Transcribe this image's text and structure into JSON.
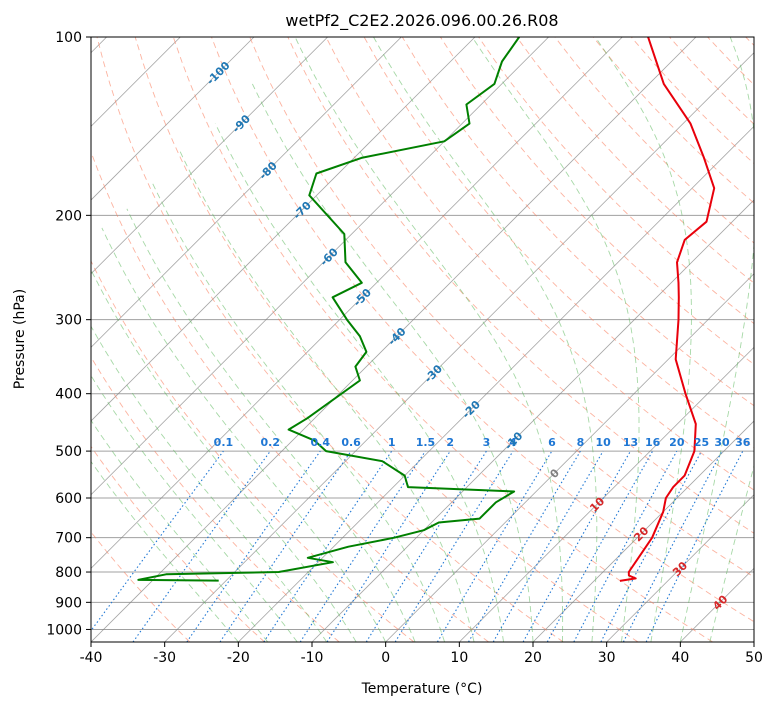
{
  "chart_data": {
    "type": "skew-t",
    "title": "wetPf2_C2E2.2026.096.00.26.R08",
    "xlabel": "Temperature (°C)",
    "ylabel": "Pressure (hPa)",
    "xlim": [
      -40,
      50
    ],
    "ylim": [
      1050,
      100
    ],
    "x_ticks": [
      -40,
      -30,
      -20,
      -10,
      0,
      10,
      20,
      30,
      40,
      50
    ],
    "y_ticks": [
      100,
      200,
      300,
      400,
      500,
      600,
      700,
      800,
      900,
      1000
    ],
    "grid": true,
    "series": [
      {
        "name": "temperature",
        "color": "#e8000b",
        "points": [
          [
            23.5,
            828
          ],
          [
            25.3,
            820
          ],
          [
            24.0,
            811
          ],
          [
            23.5,
            800
          ],
          [
            22.0,
            700
          ],
          [
            20.0,
            633
          ],
          [
            18.5,
            600
          ],
          [
            18.0,
            575
          ],
          [
            18.0,
            550
          ],
          [
            16.0,
            500
          ],
          [
            12.5,
            450
          ],
          [
            7.0,
            400
          ],
          [
            1.0,
            350
          ],
          [
            -4.0,
            300
          ],
          [
            -7.0,
            275
          ],
          [
            -9.0,
            260
          ],
          [
            -12.0,
            240
          ],
          [
            -14.0,
            220
          ],
          [
            -13.5,
            205
          ],
          [
            -17.0,
            180
          ],
          [
            -22.5,
            160
          ],
          [
            -29.0,
            140
          ],
          [
            -38.0,
            120
          ],
          [
            -46.5,
            100
          ]
        ]
      },
      {
        "name": "dewpoint",
        "color": "#008000",
        "points": [
          [
            -31.0,
            827
          ],
          [
            -42.0,
            825
          ],
          [
            -39.0,
            807
          ],
          [
            -24.0,
            800
          ],
          [
            -18.0,
            770
          ],
          [
            -22.0,
            757
          ],
          [
            -18.0,
            725
          ],
          [
            -13.0,
            700
          ],
          [
            -10.0,
            680
          ],
          [
            -9.0,
            660
          ],
          [
            -4.0,
            650
          ],
          [
            -4.0,
            610
          ],
          [
            -3.0,
            585
          ],
          [
            -18.0,
            575
          ],
          [
            -20.0,
            550
          ],
          [
            -25.0,
            520
          ],
          [
            -34.0,
            500
          ],
          [
            -37.0,
            480
          ],
          [
            -42.0,
            460
          ],
          [
            -41.0,
            440
          ],
          [
            -39.0,
            380
          ],
          [
            -41.5,
            360
          ],
          [
            -42.0,
            340
          ],
          [
            -45.0,
            320
          ],
          [
            -49.0,
            300
          ],
          [
            -54.0,
            275
          ],
          [
            -52.0,
            260
          ],
          [
            -57.0,
            240
          ],
          [
            -61.0,
            215
          ],
          [
            -71.0,
            185
          ],
          [
            -73.0,
            170
          ],
          [
            -69.0,
            160
          ],
          [
            -60.0,
            150
          ],
          [
            -59.0,
            140
          ],
          [
            -62.0,
            130
          ],
          [
            -61.0,
            120
          ],
          [
            -63.0,
            110
          ],
          [
            -64.0,
            100
          ]
        ]
      }
    ],
    "isotherm_labels": [
      "-100",
      "-90",
      "-80",
      "-70",
      "-60",
      "-50",
      "-40",
      "-30",
      "-20",
      "-10",
      "0",
      "10",
      "20",
      "30",
      "40"
    ],
    "mixing_ratio_labels": [
      "0.1",
      "0.2",
      "0.4",
      "0.6",
      "1",
      "1.5",
      "2",
      "3",
      "4",
      "6",
      "8",
      "10",
      "13",
      "16",
      "20",
      "25",
      "30",
      "36"
    ]
  },
  "colors": {
    "dry_adiabat": "#fa8060",
    "moist_adiabat": "#5cb85c",
    "mixing_ratio": "#1f77d4",
    "isotherm": "#808080",
    "isobar": "#a0a0a0",
    "isotherm_label_neg": "#1f77b4",
    "isotherm_label_pos": "#d62728",
    "isotherm_label_zero": "#808080"
  }
}
